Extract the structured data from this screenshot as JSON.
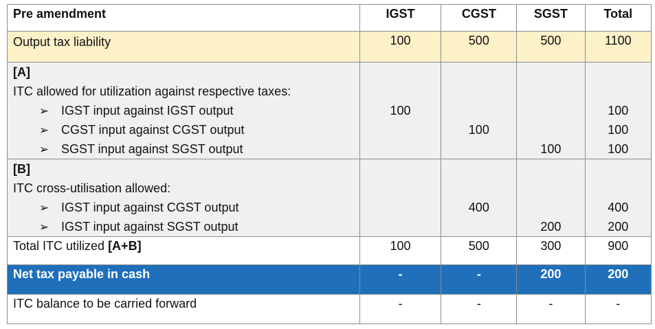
{
  "header": {
    "label": "Pre amendment",
    "igst": "IGST",
    "cgst": "CGST",
    "sgst": "SGST",
    "total": "Total"
  },
  "output": {
    "label": "Output tax liability",
    "igst": "100",
    "cgst": "500",
    "sgst": "500",
    "total": "1100"
  },
  "section_a": {
    "tag": "[A]",
    "title": "ITC allowed for utilization against respective taxes:",
    "arrow": "➢",
    "items": [
      {
        "label": "IGST input against IGST output",
        "igst": "100",
        "cgst": "",
        "sgst": "",
        "total": "100"
      },
      {
        "label": "CGST input against CGST output",
        "igst": "",
        "cgst": "100",
        "sgst": "",
        "total": "100"
      },
      {
        "label": "SGST input against SGST output",
        "igst": "",
        "cgst": "",
        "sgst": "100",
        "total": "100"
      }
    ]
  },
  "section_b": {
    "tag": "[B]",
    "title": "ITC cross-utilisation allowed:",
    "arrow": "➢",
    "items": [
      {
        "label": "IGST input against CGST output",
        "igst": "",
        "cgst": "400",
        "sgst": "",
        "total": "400"
      },
      {
        "label": "IGST input against SGST output",
        "igst": "",
        "cgst": "",
        "sgst": "200",
        "total": "200"
      }
    ]
  },
  "total_itc": {
    "label": "Total ITC utilized ",
    "label_bold": "[A+B]",
    "igst": "100",
    "cgst": "500",
    "sgst": "300",
    "total": "900"
  },
  "net_tax": {
    "label": "Net tax payable in cash",
    "igst": "-",
    "cgst": "-",
    "sgst": "200",
    "total": "200"
  },
  "itc_balance": {
    "label": "ITC balance to be carried forward",
    "igst": "-",
    "cgst": "-",
    "sgst": "-",
    "total": "-"
  },
  "colors": {
    "header_bg": "#ffffff",
    "output_bg": "#fdf1c8",
    "section_bg": "#f0f0f0",
    "net_bg": "#1f6fba",
    "net_text": "#ffffff"
  }
}
